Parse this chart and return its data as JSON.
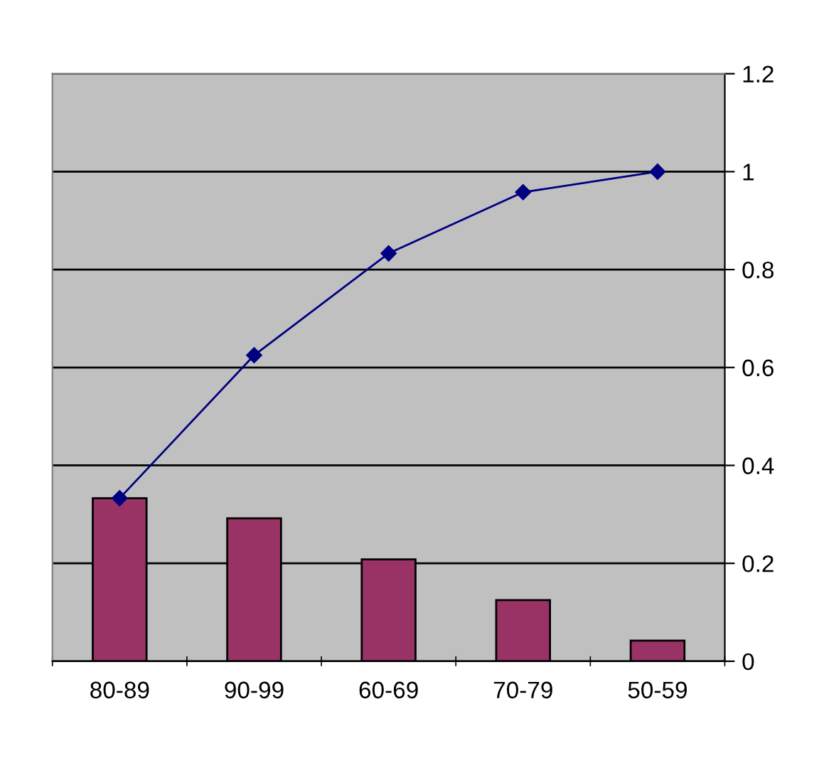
{
  "chart_data": {
    "type": "bar",
    "categories": [
      "80-89",
      "90-99",
      "60-69",
      "70-79",
      "50-59"
    ],
    "series": [
      {
        "color": "#993366",
        "values": [
          0.333,
          0.292,
          0.208,
          0.125,
          0.042
        ]
      },
      {
        "type": "line",
        "color": "#000080",
        "values": [
          0.333,
          0.625,
          0.833,
          0.958,
          1.0
        ],
        "marker": "diamond",
        "line_style": "solid"
      }
    ],
    "ylim": [
      0,
      1.2
    ],
    "yticks": [
      0,
      0.2,
      0.4,
      0.6,
      0.8,
      1,
      1.2
    ],
    "grid": "y",
    "legend": false
  }
}
